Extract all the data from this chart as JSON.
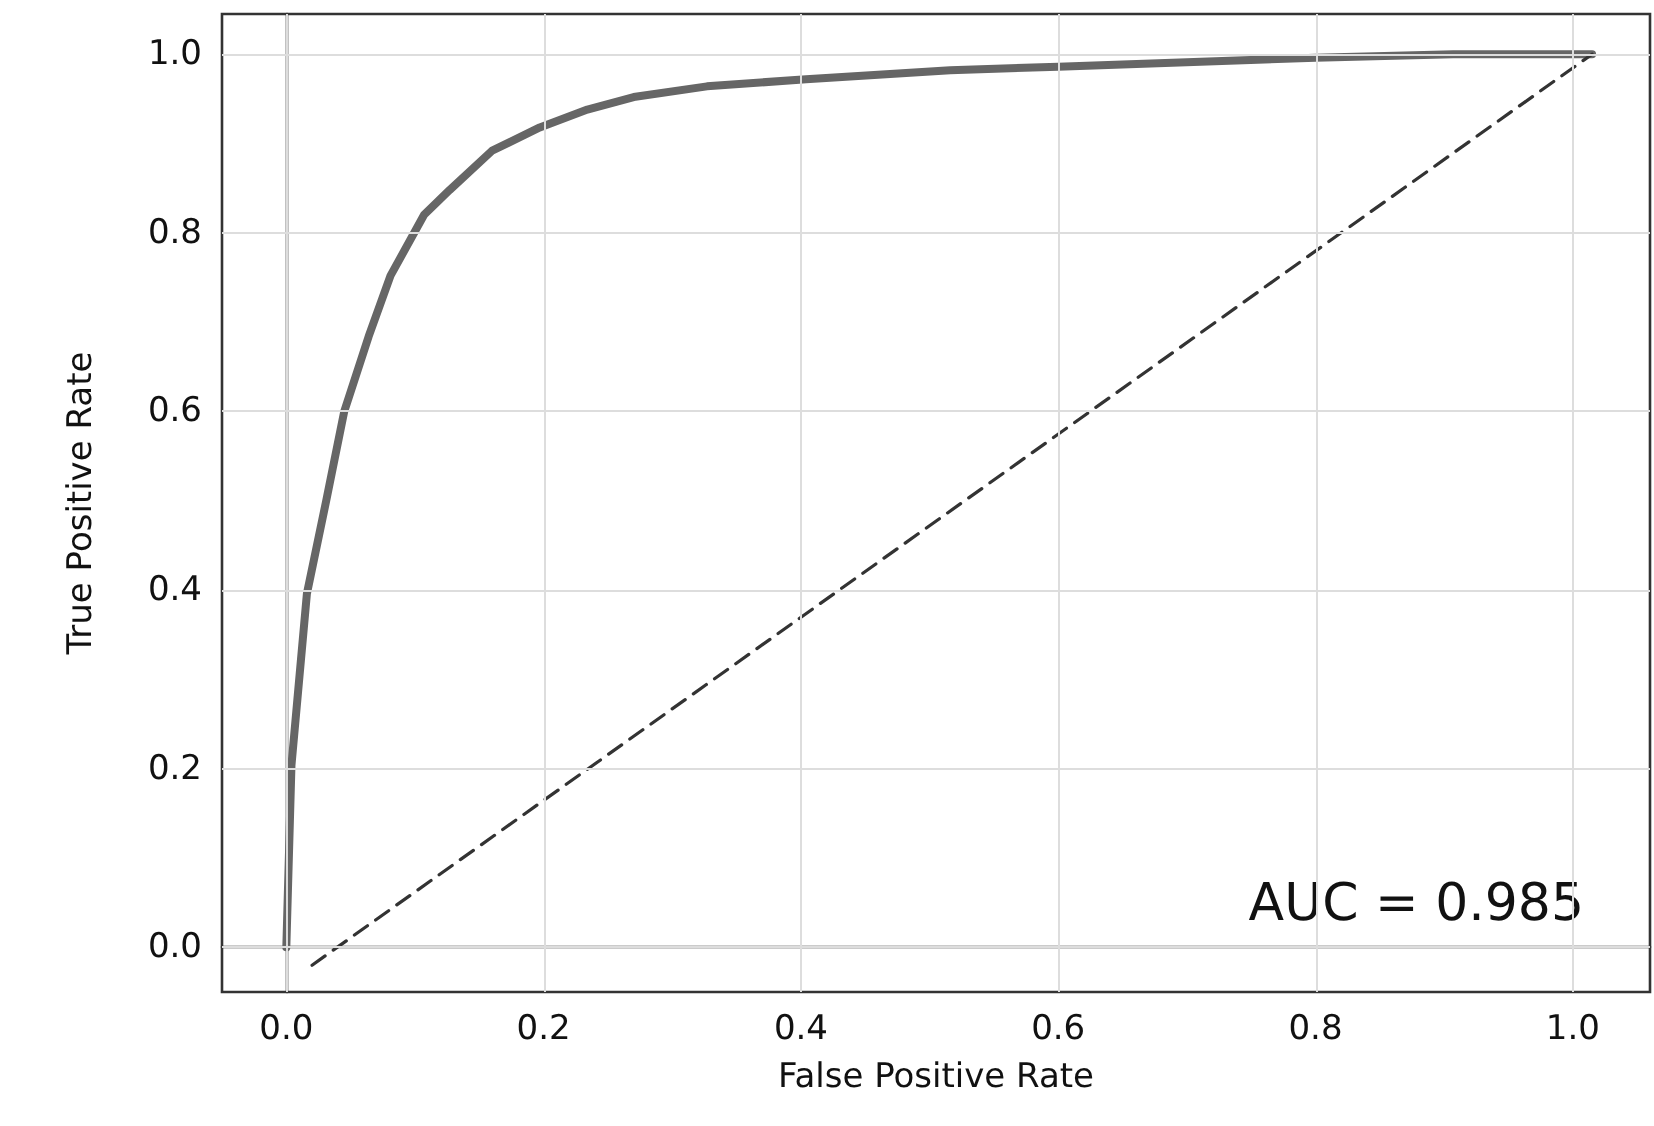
{
  "chart_data": {
    "type": "line",
    "xlabel": "False Positive Rate",
    "ylabel": "True Positive Rate",
    "series": [
      {
        "color": "#666666",
        "line_style": "solid",
        "x": [
          0,
          0.004,
          0.016,
          0.031,
          0.045,
          0.064,
          0.081,
          0.107,
          0.127,
          0.16,
          0.197,
          0.234,
          0.27,
          0.327,
          0.404,
          0.516,
          0.6,
          0.8,
          0.907,
          1.015
        ],
        "values": [
          0,
          0.204,
          0.396,
          0.5,
          0.6,
          0.684,
          0.752,
          0.82,
          0.848,
          0.892,
          0.918,
          0.938,
          0.952,
          0.964,
          0.972,
          0.982,
          0.986,
          0.996,
          1.0,
          1.0
        ]
      },
      {
        "color": "#333333",
        "line_style": "dashed",
        "x": [
          0.02,
          1.015
        ],
        "values": [
          -0.02,
          1.0
        ]
      }
    ],
    "annotations": [
      "AUC = 0.985"
    ],
    "xlim": [
      -0.05,
      1.06
    ],
    "ylim": [
      -0.05,
      1.045
    ],
    "xticks": [
      {
        "value": 0,
        "label": "0.0"
      },
      0.2,
      0.4,
      0.6,
      0.8,
      {
        "value": 1,
        "label": "1.0"
      }
    ],
    "yticks": [
      {
        "value": 0,
        "label": "0.0"
      },
      0.2,
      0.4,
      0.6,
      0.8,
      {
        "value": 1,
        "label": "1.0"
      }
    ],
    "grid": true,
    "marker": "none"
  }
}
